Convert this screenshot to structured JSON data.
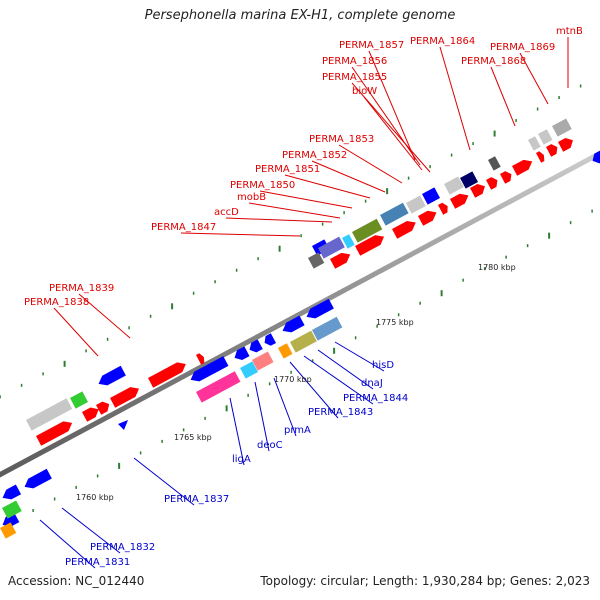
{
  "title": "Persephonella marina EX-H1, complete genome",
  "footer": {
    "accession": "Accession: NC_012440",
    "summary": "Topology: circular; Length: 1,930,284 bp; Genes: 2,023"
  },
  "colors": {
    "forward_gene": "#ff0000",
    "reverse_gene": "#0000ff",
    "backbone": "#999999",
    "tick": "#2e7d32"
  },
  "scale_ticks": [
    {
      "text": "1760 kbp"
    },
    {
      "text": "1765 kbp"
    },
    {
      "text": "1770 kbp"
    },
    {
      "text": "1775 kbp"
    },
    {
      "text": "1780 kbp"
    }
  ],
  "labels_red": [
    {
      "text": "PERMA_1857"
    },
    {
      "text": "PERMA_1864"
    },
    {
      "text": "PERMA_1869"
    },
    {
      "text": "mtnB"
    },
    {
      "text": "PERMA_1856"
    },
    {
      "text": "PERMA_1868"
    },
    {
      "text": "PERMA_1855"
    },
    {
      "text": "bioW"
    },
    {
      "text": "PERMA_1853"
    },
    {
      "text": "PERMA_1852"
    },
    {
      "text": "PERMA_1851"
    },
    {
      "text": "PERMA_1850"
    },
    {
      "text": "mobB"
    },
    {
      "text": "accD"
    },
    {
      "text": "PERMA_1847"
    },
    {
      "text": "PERMA_1839"
    },
    {
      "text": "PERMA_1838"
    }
  ],
  "labels_blue": [
    {
      "text": "hisD"
    },
    {
      "text": "dnaJ"
    },
    {
      "text": "PERMA_1844"
    },
    {
      "text": "PERMA_1843"
    },
    {
      "text": "prmA"
    },
    {
      "text": "deoC"
    },
    {
      "text": "ligA"
    },
    {
      "text": "PERMA_1837"
    },
    {
      "text": "PERMA_1832"
    },
    {
      "text": "PERMA_1831"
    }
  ]
}
